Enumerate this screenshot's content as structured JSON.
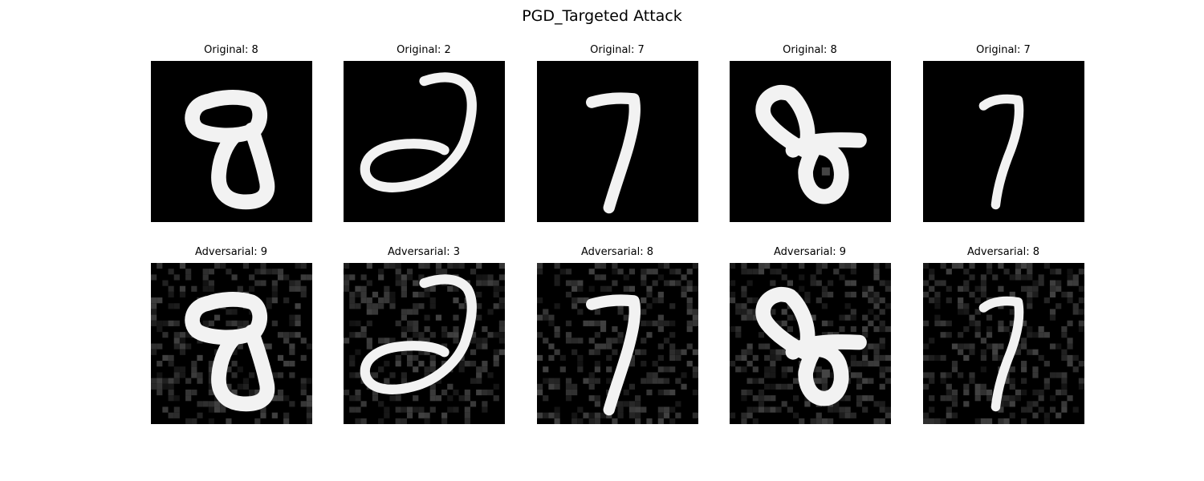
{
  "figure": {
    "title": "PGD_Targeted Attack"
  },
  "rows": [
    {
      "kind": "original",
      "panels": [
        {
          "title": "Original: 8",
          "glyph": "8"
        },
        {
          "title": "Original: 2",
          "glyph": "2"
        },
        {
          "title": "Original: 7",
          "glyph": "7"
        },
        {
          "title": "Original: 8",
          "glyph": "8-tilted"
        },
        {
          "title": "Original: 7",
          "glyph": "7-thin"
        }
      ]
    },
    {
      "kind": "adversarial",
      "panels": [
        {
          "title": "Adversarial: 9",
          "glyph": "8"
        },
        {
          "title": "Adversarial: 3",
          "glyph": "2"
        },
        {
          "title": "Adversarial: 8",
          "glyph": "7"
        },
        {
          "title": "Adversarial: 9",
          "glyph": "8-tilted"
        },
        {
          "title": "Adversarial: 8",
          "glyph": "7-thin"
        }
      ]
    }
  ],
  "colors": {
    "background": "#ffffff",
    "image_background": "#000000",
    "digit_stroke": "#f2f2f2",
    "noise": "#3a3a3a"
  }
}
